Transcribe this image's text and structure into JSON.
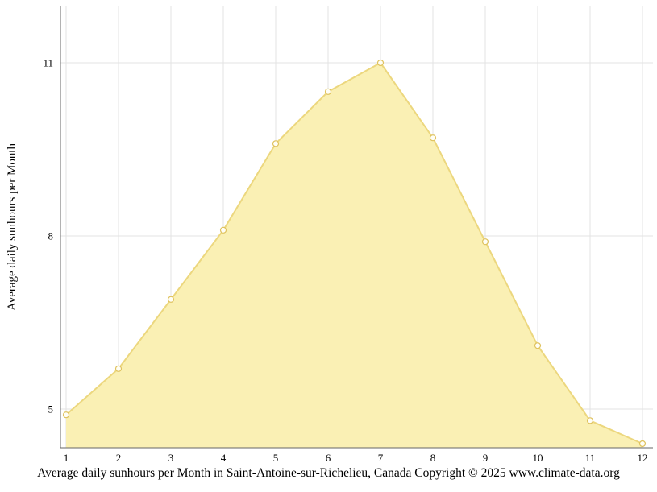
{
  "chart_data": {
    "type": "area",
    "title": "Average daily sunhours per Month in Saint-Antoine-sur-Richelieu, Canada Copyright © 2025 www.climate-data.org",
    "ylabel": "Average daily sunhours per Month",
    "xlabel": "",
    "x": [
      1,
      2,
      3,
      4,
      5,
      6,
      7,
      8,
      9,
      10,
      11,
      12
    ],
    "values": [
      4.9,
      5.7,
      6.9,
      8.1,
      9.6,
      10.5,
      11.0,
      9.7,
      7.9,
      6.1,
      4.8,
      4.4
    ],
    "yticks": [
      5,
      8,
      11
    ],
    "ylim": [
      4.3,
      11.45
    ],
    "grid": true,
    "legend": "none",
    "colors": {
      "area_fill": "#faf0b4",
      "line": "#ecd77e",
      "marker_fill": "#fffef5",
      "marker_stroke": "#dfc25e",
      "gridline": "#e3e3e3",
      "axis": "#666666",
      "text": "#000000"
    }
  }
}
